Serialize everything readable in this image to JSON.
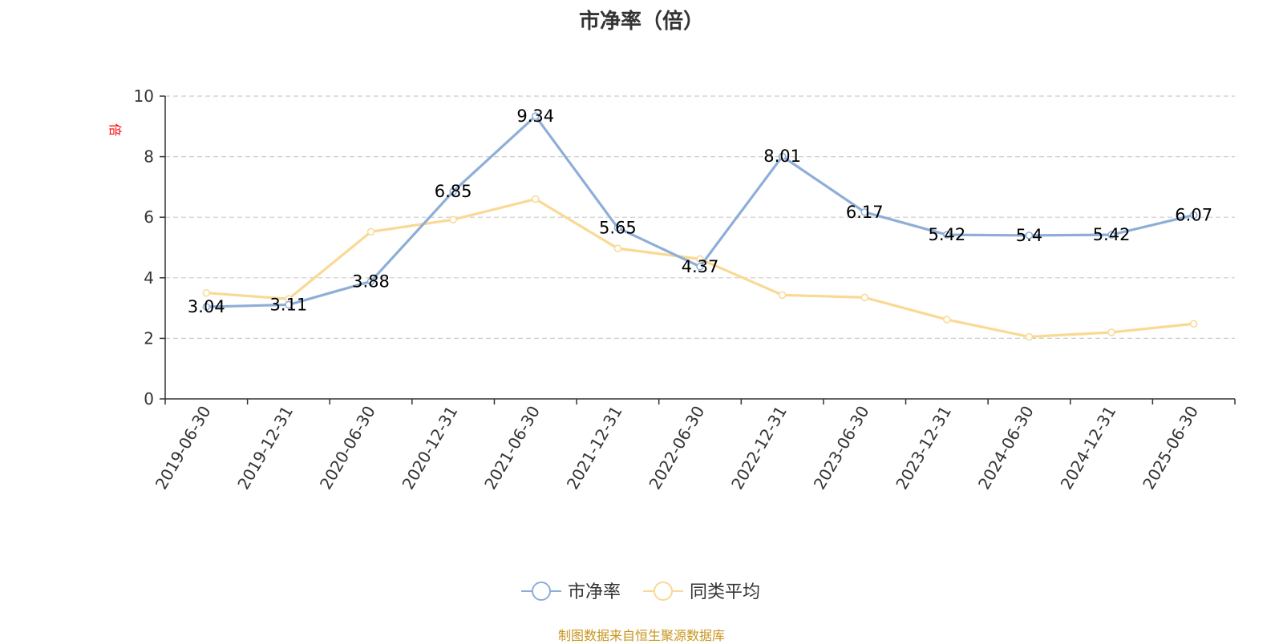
{
  "chart_data": {
    "type": "line",
    "title": "市净率（倍）",
    "ylabel": "倍",
    "xlabel": "",
    "x": [
      "2019-06-30",
      "2019-12-31",
      "2020-06-30",
      "2020-12-31",
      "2021-06-30",
      "2021-12-31",
      "2022-06-30",
      "2022-12-31",
      "2023-06-30",
      "2023-12-31",
      "2024-06-30",
      "2024-12-31",
      "2025-06-30"
    ],
    "ylim": [
      0,
      10
    ],
    "yticks": [
      0,
      2,
      4,
      6,
      8,
      10
    ],
    "grid": true,
    "legend_position": "bottom",
    "series": [
      {
        "name": "市净率",
        "color": "#8eaed8",
        "values": [
          3.04,
          3.11,
          3.88,
          6.85,
          9.34,
          5.65,
          4.37,
          8.01,
          6.17,
          5.42,
          5.4,
          5.42,
          6.07
        ],
        "labels": [
          "3.04",
          "3.11",
          "3.88",
          "6.85",
          "9.34",
          "5.65",
          "4.37",
          "8.01",
          "6.17",
          "5.42",
          "5.4",
          "5.42",
          "6.07"
        ]
      },
      {
        "name": "同类平均",
        "color": "#f9d994",
        "values": [
          3.5,
          3.3,
          5.52,
          5.92,
          6.6,
          4.97,
          4.62,
          3.43,
          3.35,
          2.62,
          2.05,
          2.2,
          2.48
        ]
      }
    ]
  },
  "source": "制图数据来自恒生聚源数据库"
}
